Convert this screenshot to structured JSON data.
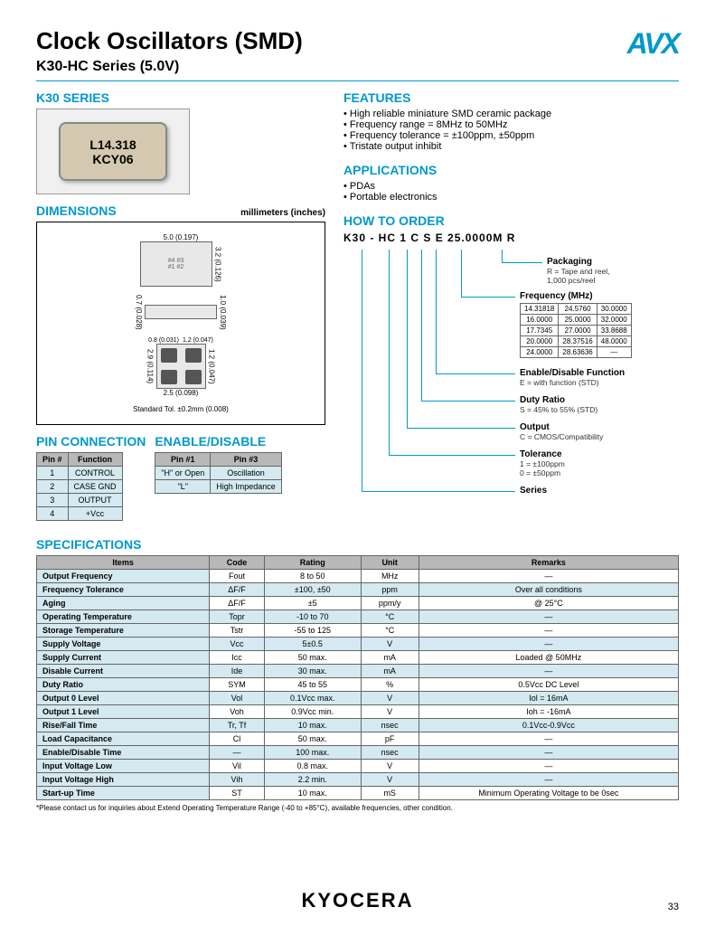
{
  "header": {
    "title": "Clock Oscillators (SMD)",
    "subtitle": "K30-HC Series (5.0V)",
    "logo": "AVX"
  },
  "k30_series": {
    "title": "K30 SERIES",
    "chip_line1": "L14.318",
    "chip_line2": "KCY06"
  },
  "dimensions": {
    "title": "DIMENSIONS",
    "unit": "millimeters (inches)",
    "top_w": "5.0 (0.197)",
    "top_h": "3.2 (0.126)",
    "side_h": "1.0 (0.039)",
    "side_gap": "0.7 (0.028)",
    "btm_w": "2.5 (0.098)",
    "btm_h": "2.9 (0.114)",
    "pad_w": "1.2 (0.047)",
    "pad_h": "1.2 (0.047)",
    "pad_gap": "0.8 (0.031)",
    "tol": "Standard Tol. ±0.2mm (0.008)"
  },
  "pin_connection": {
    "title": "PIN CONNECTION",
    "headers": [
      "Pin #",
      "Function"
    ],
    "rows": [
      [
        "1",
        "CONTROL"
      ],
      [
        "2",
        "CASE GND"
      ],
      [
        "3",
        "OUTPUT"
      ],
      [
        "4",
        "+Vcc"
      ]
    ]
  },
  "enable_disable": {
    "title": "ENABLE/DISABLE",
    "headers": [
      "Pin #1",
      "Pin #3"
    ],
    "rows": [
      [
        "\"H\" or Open",
        "Oscillation"
      ],
      [
        "\"L\"",
        "High Impedance"
      ]
    ]
  },
  "features": {
    "title": "FEATURES",
    "items": [
      "High reliable miniature SMD ceramic package",
      "Frequency range = 8MHz to 50MHz",
      "Frequency tolerance = ±100ppm, ±50ppm",
      "Tristate output inhibit"
    ]
  },
  "applications": {
    "title": "APPLICATIONS",
    "items": [
      "PDAs",
      "Portable electronics"
    ]
  },
  "how_to_order": {
    "title": "HOW TO ORDER",
    "code": "K30 - HC 1   C  S  E  25.0000M  R",
    "packaging": {
      "label": "Packaging",
      "desc": "R = Tape and reel,\n1,000 pcs/reel"
    },
    "frequency": {
      "label": "Frequency (MHz)",
      "rows": [
        [
          "14.31818",
          "24.5760",
          "30.0000"
        ],
        [
          "16.0000",
          "25.0000",
          "32.0000"
        ],
        [
          "17.7345",
          "27.0000",
          "33.8688"
        ],
        [
          "20.0000",
          "28.37516",
          "48.0000"
        ],
        [
          "24.0000",
          "28.63636",
          "—"
        ]
      ]
    },
    "enable_fn": {
      "label": "Enable/Disable Function",
      "desc": "E = with function (STD)"
    },
    "duty": {
      "label": "Duty Ratio",
      "desc": "S = 45% to 55% (STD)"
    },
    "output": {
      "label": "Output",
      "desc": "C = CMOS/Compatibility"
    },
    "tolerance": {
      "label": "Tolerance",
      "desc": "1 = ±100ppm\n0 = ±50ppm"
    },
    "series": {
      "label": "Series"
    }
  },
  "specifications": {
    "title": "SPECIFICATIONS",
    "headers": [
      "Items",
      "Code",
      "Rating",
      "Unit",
      "Remarks"
    ],
    "rows": [
      [
        "Output Frequency",
        "Fout",
        "8 to 50",
        "MHz",
        "—"
      ],
      [
        "Frequency Tolerance",
        "ΔF/F",
        "±100, ±50",
        "ppm",
        "Over all conditions"
      ],
      [
        "Aging",
        "ΔF/F",
        "±5",
        "ppm/y",
        "@ 25°C"
      ],
      [
        "Operating Temperature",
        "Topr",
        "-10 to 70",
        "°C",
        "—"
      ],
      [
        "Storage Temperature",
        "Tstr",
        "-55 to 125",
        "°C",
        "—"
      ],
      [
        "Supply Voltage",
        "Vcc",
        "5±0.5",
        "V",
        "—"
      ],
      [
        "Supply Current",
        "Icc",
        "50 max.",
        "mA",
        "Loaded @ 50MHz"
      ],
      [
        "Disable Current",
        "Ide",
        "30 max.",
        "mA",
        "—"
      ],
      [
        "Duty Ratio",
        "SYM",
        "45 to 55",
        "%",
        "0.5Vcc DC Level"
      ],
      [
        "Output 0 Level",
        "Vol",
        "0.1Vcc max.",
        "V",
        "Iol = 16mA"
      ],
      [
        "Output 1 Level",
        "Voh",
        "0.9Vcc min.",
        "V",
        "Ioh = -16mA"
      ],
      [
        "Rise/Fall Time",
        "Tr, Tf",
        "10 max.",
        "nsec",
        "0.1Vcc-0.9Vcc"
      ],
      [
        "Load Capacitance",
        "Cl",
        "50 max.",
        "pF",
        "—"
      ],
      [
        "Enable/Disable Time",
        "—",
        "100 max.",
        "nsec",
        "—"
      ],
      [
        "Input Voltage Low",
        "Vil",
        "0.8 max.",
        "V",
        "—"
      ],
      [
        "Input Voltage High",
        "Vih",
        "2.2 min.",
        "V",
        "—"
      ],
      [
        "Start-up Time",
        "ST",
        "10 max.",
        "mS",
        "Minimum Operating Voltage to be 0sec"
      ]
    ]
  },
  "footnote": "*Please contact us for inquiries about Extend Operating Temperature Range (-40 to +85°C), available frequencies, other condition.",
  "footer": {
    "logo": "KYOCERA",
    "page": "33"
  },
  "colors": {
    "accent": "#0099cc",
    "th_bg": "#b8b8b8",
    "td_bg": "#d4e9f0"
  }
}
